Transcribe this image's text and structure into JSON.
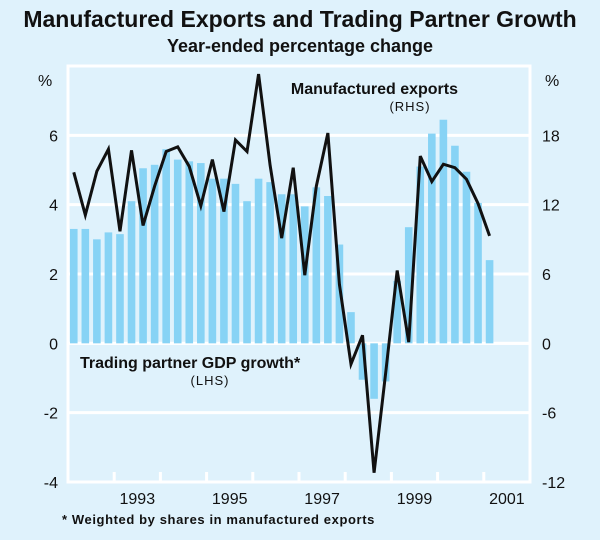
{
  "chart_data": {
    "type": "bar+line",
    "title": "Manufactured Exports and Trading Partner Growth",
    "subtitle": "Year-ended percentage change",
    "footnote": "*   Weighted by shares in manufactured exports",
    "left_axis": {
      "unit": "%",
      "ylim": [
        -4,
        8
      ],
      "ticks": [
        -4,
        -2,
        0,
        2,
        4,
        6
      ]
    },
    "right_axis": {
      "unit": "%",
      "ylim": [
        -12,
        24
      ],
      "ticks": [
        -12,
        -6,
        0,
        6,
        12,
        18
      ]
    },
    "x_axis": {
      "range": [
        1992,
        2002
      ],
      "tick_labels": [
        "1993",
        "1995",
        "1997",
        "1999",
        "2001"
      ]
    },
    "grid": true,
    "colors": {
      "background": "#dff2fc",
      "bars": "#87d3f5",
      "line": "#111111",
      "grid": "#ffffff"
    },
    "x": [
      "1992Q1",
      "1992Q2",
      "1992Q3",
      "1992Q4",
      "1993Q1",
      "1993Q2",
      "1993Q3",
      "1993Q4",
      "1994Q1",
      "1994Q2",
      "1994Q3",
      "1994Q4",
      "1995Q1",
      "1995Q2",
      "1995Q3",
      "1995Q4",
      "1996Q1",
      "1996Q2",
      "1996Q3",
      "1996Q4",
      "1997Q1",
      "1997Q2",
      "1997Q3",
      "1997Q4",
      "1998Q1",
      "1998Q2",
      "1998Q3",
      "1998Q4",
      "1999Q1",
      "1999Q2",
      "1999Q3",
      "1999Q4",
      "2000Q1",
      "2000Q2",
      "2000Q3",
      "2000Q4",
      "2001Q1"
    ],
    "series": [
      {
        "name": "Trading partner GDP growth*",
        "axis_label": "(LHS)",
        "type": "bar",
        "axis": "left",
        "values": [
          3.3,
          3.3,
          3.0,
          3.2,
          3.15,
          4.1,
          5.05,
          5.15,
          5.6,
          5.3,
          5.25,
          5.2,
          4.75,
          4.75,
          4.6,
          4.1,
          4.75,
          4.65,
          4.3,
          4.3,
          3.95,
          4.5,
          4.25,
          2.85,
          0.9,
          -1.05,
          -1.6,
          -1.1,
          1.8,
          3.35,
          5.1,
          6.05,
          6.45,
          5.7,
          4.95,
          4.05,
          2.4
        ]
      },
      {
        "name": "Manufactured exports",
        "axis_label": "(RHS)",
        "type": "line",
        "axis": "right",
        "values": [
          14.8,
          11.1,
          14.9,
          16.8,
          9.7,
          16.7,
          10.2,
          13.6,
          16.6,
          17.0,
          15.3,
          11.9,
          15.9,
          11.4,
          17.6,
          16.6,
          23.3,
          15.4,
          9.1,
          15.2,
          5.9,
          13.6,
          18.2,
          5.1,
          -1.8,
          0.7,
          -11.2,
          -2.6,
          6.3,
          0.1,
          16.2,
          14.0,
          15.5,
          15.2,
          14.2,
          12.1,
          9.3
        ]
      }
    ]
  }
}
